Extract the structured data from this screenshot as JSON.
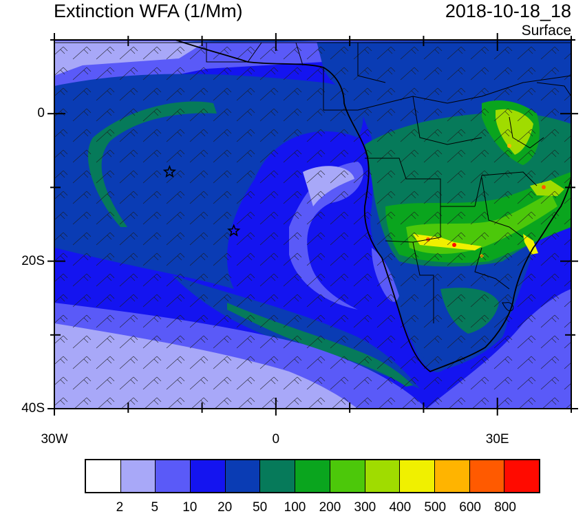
{
  "header": {
    "title": "Extinction WFA (1/Mm)",
    "datetime": "2018-10-18_18",
    "level": "Surface"
  },
  "map": {
    "projection": "cylindrical-equidistant",
    "lon_range": [
      -30,
      40
    ],
    "lat_range": [
      -40,
      10
    ],
    "lat_labels": [
      {
        "value": 0,
        "text": "0"
      },
      {
        "value": -20,
        "text": "20S"
      },
      {
        "value": -40,
        "text": "40S"
      }
    ],
    "lon_labels": [
      {
        "value": -30,
        "text": "30W"
      },
      {
        "value": 0,
        "text": "0"
      },
      {
        "value": 30,
        "text": "30E"
      }
    ],
    "markers": [
      {
        "type": "star",
        "lon": -14.4,
        "lat": -7.9
      },
      {
        "type": "star",
        "lon": -5.7,
        "lat": -15.9
      }
    ],
    "features": [
      "coastlines",
      "country-borders",
      "wind-barbs"
    ]
  },
  "colorbar": {
    "colors": [
      "#ffffff",
      "#a8a8f8",
      "#5a5af8",
      "#1414f0",
      "#0a3cb4",
      "#067a5a",
      "#0aa51e",
      "#4cc80a",
      "#a0dc00",
      "#f0f000",
      "#ffb400",
      "#ff5a00",
      "#ff0a00"
    ],
    "labels": [
      "2",
      "5",
      "10",
      "20",
      "50",
      "100",
      "200",
      "300",
      "400",
      "500",
      "600",
      "800"
    ]
  }
}
